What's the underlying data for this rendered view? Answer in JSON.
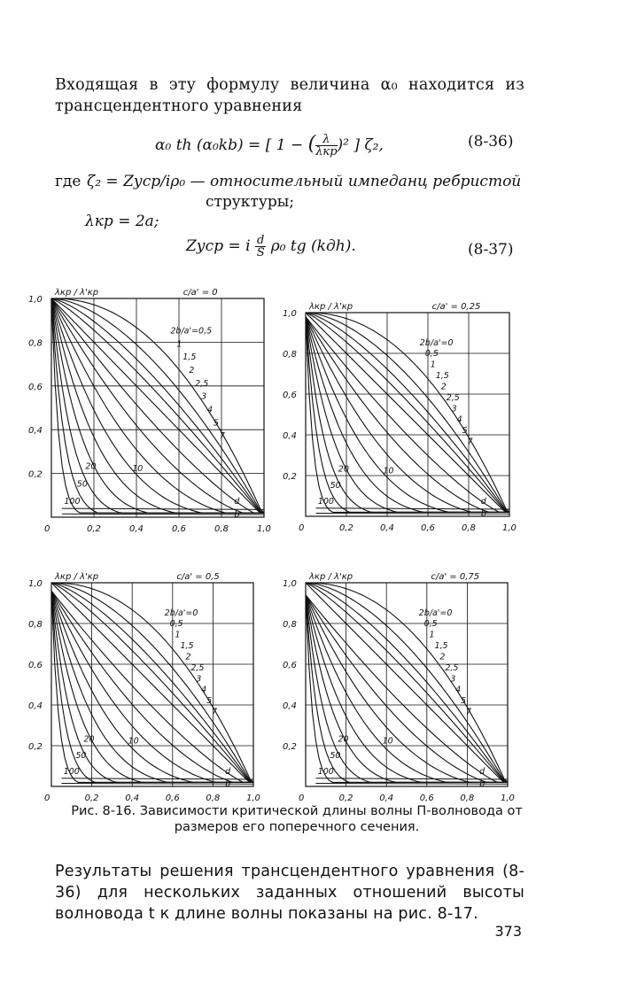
{
  "intro": "Входящая в эту формулу величина α₀ находится из трансцендентного уравнения",
  "eq36": {
    "lhs": "α₀ th (α₀kb) =",
    "bracket_open": "[ 1 −",
    "frac_num": "λ",
    "frac_den": "λкр",
    "bracket_close": ")² ] ζ₂,",
    "number": "(8-36)"
  },
  "where": {
    "prefix": "где",
    "zeta": "ζ₂ = Zуср/iρ₀ — относительный импеданц ребристой",
    "zeta_cont": "структуры;",
    "lambda": "λкр = 2a;"
  },
  "eq37": {
    "lhs": "Zуср = i",
    "frac_num": "d",
    "frac_den": "S",
    "rhs": "ρ₀ tg (kдh).",
    "number": "(8-37)"
  },
  "chart_data": [
    {
      "type": "line",
      "ylabel": "λкр / λ'кр",
      "param_label": "c/a' = 0",
      "x_ticks": [
        "0",
        "0,2",
        "0,4",
        "0,6",
        "0,8",
        "1,0"
      ],
      "y_ticks": [
        "1,0",
        "0,8",
        "0,6",
        "0,4",
        "0,2"
      ],
      "xlim": [
        0,
        1
      ],
      "ylim": [
        0,
        1
      ],
      "curve_labels": [
        "2b/a'=0,5",
        "1",
        "1,5",
        "2",
        "2,5",
        "3",
        "4",
        "5",
        "7",
        "10",
        "20",
        "50",
        "100",
        "d",
        "b"
      ]
    },
    {
      "type": "line",
      "ylabel": "λкр / λ'кр",
      "param_label": "c/a' = 0,25",
      "x_ticks": [
        "0",
        "0,2",
        "0,4",
        "0,6",
        "0,8",
        "1,0"
      ],
      "y_ticks": [
        "1,0",
        "0,8",
        "0,6",
        "0,4",
        "0,2"
      ],
      "xlim": [
        0,
        1
      ],
      "ylim": [
        0,
        1
      ],
      "curve_labels": [
        "2b/a'=0",
        "0,5",
        "1",
        "1,5",
        "2",
        "2,5",
        "3",
        "4",
        "5",
        "7",
        "10",
        "20",
        "50",
        "100",
        "d",
        "b"
      ]
    },
    {
      "type": "line",
      "ylabel": "λкр / λ'кр",
      "param_label": "c/a' = 0,5",
      "x_ticks": [
        "0",
        "0,2",
        "0,4",
        "0,6",
        "0,8",
        "1,0"
      ],
      "y_ticks": [
        "1,0",
        "0,8",
        "0,6",
        "0,4",
        "0,2"
      ],
      "xlim": [
        0,
        1
      ],
      "ylim": [
        0,
        1
      ],
      "curve_labels": [
        "2b/a'=0",
        "0,5",
        "1",
        "1,5",
        "2",
        "2,5",
        "3",
        "4",
        "5",
        "7",
        "10",
        "20",
        "50",
        "100",
        "d",
        "b"
      ]
    },
    {
      "type": "line",
      "ylabel": "λкр / λ'кр",
      "param_label": "c/a' = 0,75",
      "x_ticks": [
        "0",
        "0,2",
        "0,4",
        "0,6",
        "0,8",
        "1,0"
      ],
      "y_ticks": [
        "1,0",
        "0,8",
        "0,6",
        "0,4",
        "0,2"
      ],
      "xlim": [
        0,
        1
      ],
      "ylim": [
        0,
        1
      ],
      "curve_labels": [
        "2b/a'=0",
        "0,5",
        "1",
        "1,5",
        "2",
        "2,5",
        "3",
        "4",
        "5",
        "7",
        "10",
        "20",
        "50",
        "100",
        "d",
        "b"
      ]
    }
  ],
  "caption": "Рис. 8-16. Зависимости критической длины волны П-волновода от размеров его поперечного сечения.",
  "results": "Результаты решения трансцендентного уравнения (8-36) для нескольких заданных отношений высоты волновода t к длине волны показаны на рис. 8-17.",
  "page_number": "373"
}
